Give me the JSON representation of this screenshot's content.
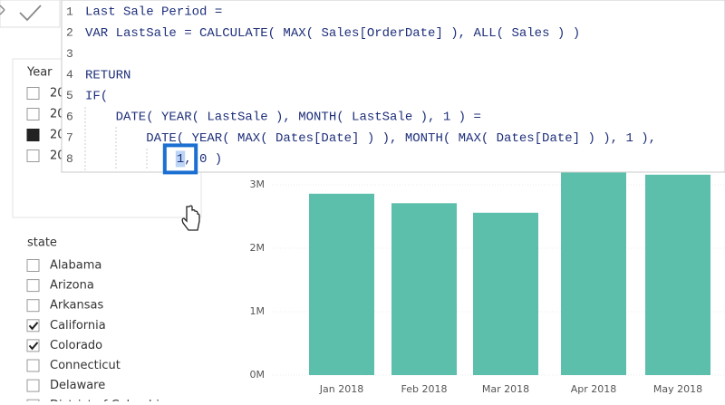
{
  "formula": {
    "lines": [
      {
        "number": 1,
        "text": "Last Sale Period ="
      },
      {
        "number": 2,
        "text": "VAR LastSale = CALCULATE( MAX( Sales[OrderDate] ), ALL( Sales ) )"
      },
      {
        "number": 3,
        "text": ""
      },
      {
        "number": 4,
        "text": "RETURN"
      },
      {
        "number": 5,
        "text": "IF("
      },
      {
        "number": 6,
        "text": "DATE( YEAR( LastSale ), MONTH( LastSale ), 1 ) ="
      },
      {
        "number": 7,
        "text": "DATE( YEAR( MAX( Dates[Date] ) ), MONTH( MAX( Dates[Date] ) ), 1 ),"
      },
      {
        "number": 8,
        "text": "1, 0 )"
      }
    ]
  },
  "year_slicer": {
    "title": "Year",
    "items": [
      {
        "label": "20",
        "checked": false
      },
      {
        "label": "20",
        "checked": false
      },
      {
        "label": "20",
        "checked": true
      },
      {
        "label": "20",
        "checked": false
      }
    ]
  },
  "state_slicer": {
    "title": "state",
    "items": [
      {
        "label": "Alabama",
        "checked": false
      },
      {
        "label": "Arizona",
        "checked": false
      },
      {
        "label": "Arkansas",
        "checked": false
      },
      {
        "label": "California",
        "checked": true
      },
      {
        "label": "Colorado",
        "checked": true
      },
      {
        "label": "Connecticut",
        "checked": false
      },
      {
        "label": "Delaware",
        "checked": false
      },
      {
        "label": "District of Columbia",
        "checked": false
      }
    ]
  },
  "chart": {
    "type": "bar",
    "color": "#5bbfac",
    "categories": [
      "Jan 2018",
      "Feb 2018",
      "Mar 2018",
      "Apr 2018",
      "May 2018"
    ],
    "values": [
      2860000,
      2710000,
      2560000,
      3250000,
      3160000
    ],
    "ylim": [
      0,
      3500000
    ],
    "yticks": [
      {
        "value": 0,
        "label": "0M"
      },
      {
        "value": 1000000,
        "label": "1M"
      },
      {
        "value": 2000000,
        "label": "2M"
      },
      {
        "value": 3000000,
        "label": "3M"
      }
    ]
  }
}
